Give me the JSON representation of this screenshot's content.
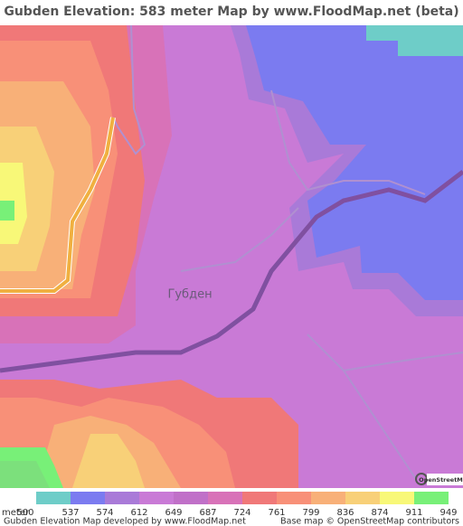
{
  "header": {
    "title": "Gubden Elevation: 583 meter Map by www.FloodMap.net (beta)"
  },
  "map": {
    "place_label": "Губден",
    "logo_text": "OpenStreetMap"
  },
  "legend": {
    "unit": "meter",
    "values": [
      500,
      537,
      574,
      612,
      649,
      687,
      724,
      761,
      799,
      836,
      874,
      911,
      949
    ],
    "colors": [
      "#6ecdc8",
      "#7b7bf0",
      "#a97ad8",
      "#c97ad6",
      "#c070c8",
      "#d872b8",
      "#f07878",
      "#f89078",
      "#f8b078",
      "#f8d078",
      "#f8f878",
      "#78f078",
      "#7ce07c"
    ]
  },
  "footer": {
    "credit": "Gubden Elevation Map developed by www.FloodMap.net",
    "basemap": "Base map © OpenStreetMap contributors"
  }
}
